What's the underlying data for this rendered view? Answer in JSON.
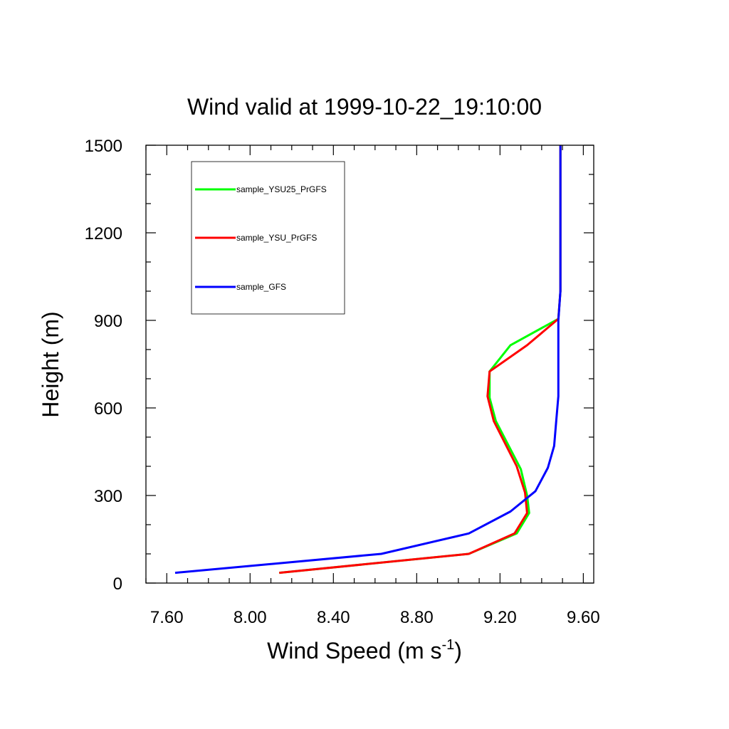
{
  "chart_data": {
    "type": "line",
    "title": "Wind valid at 1999-10-22_19:10:00",
    "xlabel": "Wind Speed (m s",
    "xlabel_sup": "-1",
    "xlabel_close": ")",
    "ylabel": "Height (m)",
    "xlim": [
      7.5,
      9.65
    ],
    "ylim": [
      0,
      1500
    ],
    "xticks": [
      7.6,
      8.0,
      8.4,
      8.8,
      9.2,
      9.6
    ],
    "xtick_labels": [
      "7.60",
      "8.00",
      "8.40",
      "8.80",
      "9.20",
      "9.60"
    ],
    "yticks": [
      0,
      300,
      600,
      900,
      1200,
      1500
    ],
    "ytick_labels": [
      "0",
      "300",
      "600",
      "900",
      "1200",
      "1500"
    ],
    "grid": false,
    "legend_position": "top-left",
    "series": [
      {
        "name": "sample_YSU25_PrGFS",
        "color": "#00ff00",
        "points": [
          [
            8.14,
            35
          ],
          [
            9.05,
            100
          ],
          [
            9.28,
            170
          ],
          [
            9.34,
            240
          ],
          [
            9.33,
            300
          ],
          [
            9.3,
            390
          ],
          [
            9.18,
            555
          ],
          [
            9.15,
            635
          ],
          [
            9.15,
            725
          ],
          [
            9.25,
            815
          ],
          [
            9.48,
            905
          ],
          [
            9.49,
            1000
          ],
          [
            9.49,
            1500
          ]
        ]
      },
      {
        "name": "sample_YSU_PrGFS",
        "color": "#ff0000",
        "points": [
          [
            8.14,
            35
          ],
          [
            9.05,
            100
          ],
          [
            9.27,
            170
          ],
          [
            9.33,
            240
          ],
          [
            9.32,
            310
          ],
          [
            9.28,
            400
          ],
          [
            9.17,
            555
          ],
          [
            9.14,
            640
          ],
          [
            9.15,
            725
          ],
          [
            9.33,
            815
          ],
          [
            9.48,
            905
          ],
          [
            9.49,
            1000
          ],
          [
            9.49,
            1500
          ]
        ]
      },
      {
        "name": "sample_GFS",
        "color": "#0000ff",
        "points": [
          [
            7.64,
            35
          ],
          [
            8.63,
            100
          ],
          [
            9.05,
            170
          ],
          [
            9.25,
            245
          ],
          [
            9.37,
            315
          ],
          [
            9.43,
            395
          ],
          [
            9.46,
            470
          ],
          [
            9.47,
            555
          ],
          [
            9.48,
            640
          ],
          [
            9.48,
            725
          ],
          [
            9.48,
            900
          ],
          [
            9.49,
            1000
          ],
          [
            9.49,
            1500
          ]
        ]
      }
    ]
  }
}
